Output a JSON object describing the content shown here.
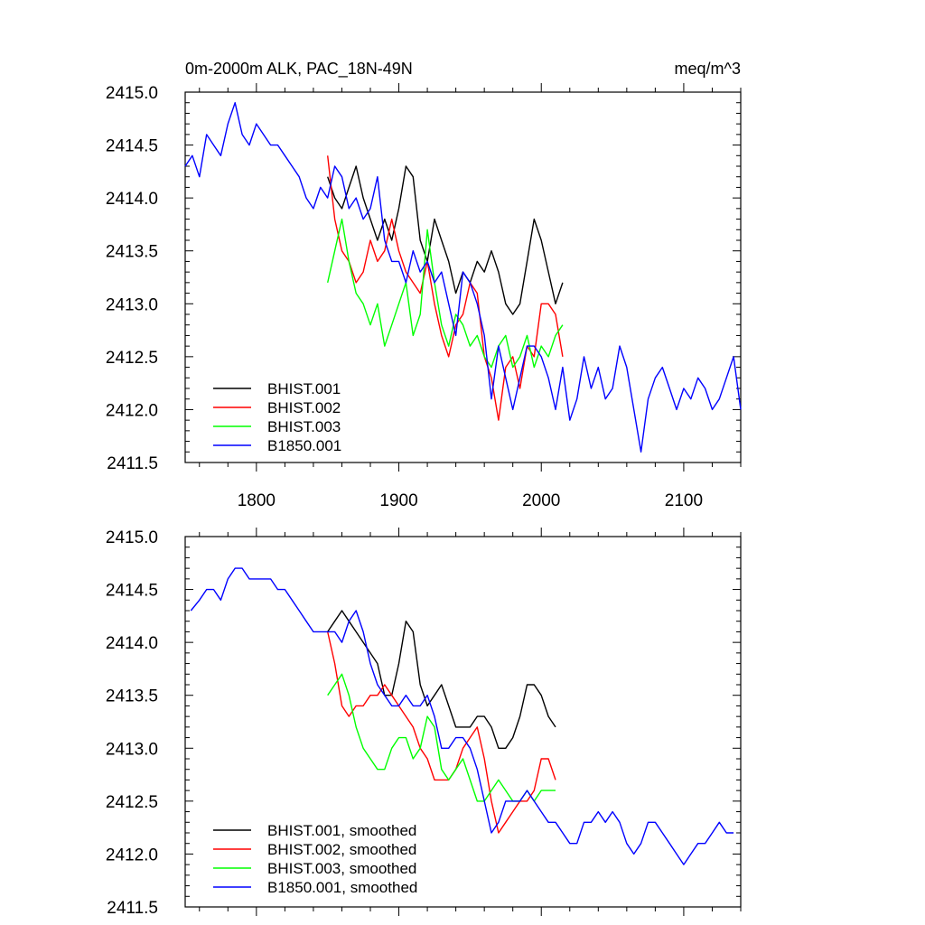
{
  "chart_data": [
    {
      "type": "line",
      "title": "0m-2000m ALK, PAC_18N-49N",
      "units": "meq/m^3",
      "xlim": [
        1750,
        2140
      ],
      "ylim": [
        2411.5,
        2415.0
      ],
      "x_ticks": [
        1800,
        1900,
        2000,
        2100
      ],
      "y_ticks": [
        2411.5,
        2412.0,
        2412.5,
        2413.0,
        2413.5,
        2414.0,
        2414.5,
        2415.0
      ],
      "y_tick_labels": [
        "2411.5",
        "2412.0",
        "2412.5",
        "2413.0",
        "2413.5",
        "2414.0",
        "2414.5",
        "2415.0"
      ],
      "x_tick_labels": [
        "1800",
        "1900",
        "2000",
        "2100"
      ],
      "show_x_tick_labels": true,
      "legend_position": "bottom-left",
      "series": [
        {
          "name": "BHIST.001",
          "color": "#000000",
          "x": [
            1850,
            1855,
            1860,
            1865,
            1870,
            1875,
            1880,
            1885,
            1890,
            1895,
            1900,
            1905,
            1910,
            1915,
            1920,
            1925,
            1930,
            1935,
            1940,
            1945,
            1950,
            1955,
            1960,
            1965,
            1970,
            1975,
            1980,
            1985,
            1990,
            1995,
            2000,
            2005,
            2010,
            2015
          ],
          "y": [
            2414.2,
            2414.0,
            2413.9,
            2414.1,
            2414.3,
            2414.0,
            2413.8,
            2413.6,
            2413.8,
            2413.6,
            2413.9,
            2414.3,
            2414.2,
            2413.6,
            2413.4,
            2413.8,
            2413.6,
            2413.4,
            2413.1,
            2413.3,
            2413.2,
            2413.4,
            2413.3,
            2413.5,
            2413.3,
            2413.0,
            2412.9,
            2413.0,
            2413.4,
            2413.8,
            2413.6,
            2413.3,
            2413.0,
            2413.2
          ]
        },
        {
          "name": "BHIST.002",
          "color": "#ff0000",
          "x": [
            1850,
            1855,
            1860,
            1865,
            1870,
            1875,
            1880,
            1885,
            1890,
            1895,
            1900,
            1905,
            1910,
            1915,
            1920,
            1925,
            1930,
            1935,
            1940,
            1945,
            1950,
            1955,
            1960,
            1965,
            1970,
            1975,
            1980,
            1985,
            1990,
            1995,
            2000,
            2005,
            2010,
            2015
          ],
          "y": [
            2414.4,
            2413.8,
            2413.5,
            2413.4,
            2413.2,
            2413.3,
            2413.6,
            2413.4,
            2413.5,
            2413.8,
            2413.5,
            2413.3,
            2413.2,
            2413.1,
            2413.4,
            2413.0,
            2412.7,
            2412.5,
            2412.8,
            2412.9,
            2413.2,
            2413.1,
            2412.5,
            2412.3,
            2411.9,
            2412.4,
            2412.5,
            2412.2,
            2412.6,
            2412.5,
            2413.0,
            2413.0,
            2412.9,
            2412.5
          ]
        },
        {
          "name": "BHIST.003",
          "color": "#00ff00",
          "x": [
            1850,
            1855,
            1860,
            1865,
            1870,
            1875,
            1880,
            1885,
            1890,
            1895,
            1900,
            1905,
            1910,
            1915,
            1920,
            1925,
            1930,
            1935,
            1940,
            1945,
            1950,
            1955,
            1960,
            1965,
            1970,
            1975,
            1980,
            1985,
            1990,
            1995,
            2000,
            2005,
            2010,
            2015
          ],
          "y": [
            2413.2,
            2413.5,
            2413.8,
            2413.4,
            2413.1,
            2413.0,
            2412.8,
            2413.0,
            2412.6,
            2412.8,
            2413.0,
            2413.2,
            2412.7,
            2412.9,
            2413.7,
            2413.2,
            2412.8,
            2412.6,
            2412.9,
            2412.8,
            2412.6,
            2412.7,
            2412.5,
            2412.4,
            2412.6,
            2412.7,
            2412.4,
            2412.5,
            2412.7,
            2412.4,
            2412.6,
            2412.5,
            2412.7,
            2412.8
          ]
        },
        {
          "name": "B1850.001",
          "color": "#0000ff",
          "x": [
            1750,
            1755,
            1760,
            1765,
            1770,
            1775,
            1780,
            1785,
            1790,
            1795,
            1800,
            1805,
            1810,
            1815,
            1820,
            1825,
            1830,
            1835,
            1840,
            1845,
            1850,
            1855,
            1860,
            1865,
            1870,
            1875,
            1880,
            1885,
            1890,
            1895,
            1900,
            1905,
            1910,
            1915,
            1920,
            1925,
            1930,
            1935,
            1940,
            1945,
            1950,
            1955,
            1960,
            1965,
            1970,
            1975,
            1980,
            1985,
            1990,
            1995,
            2000,
            2005,
            2010,
            2015,
            2020,
            2025,
            2030,
            2035,
            2040,
            2045,
            2050,
            2055,
            2060,
            2065,
            2070,
            2075,
            2080,
            2085,
            2090,
            2095,
            2100,
            2105,
            2110,
            2115,
            2120,
            2125,
            2130,
            2135,
            2140
          ],
          "y": [
            2414.3,
            2414.4,
            2414.2,
            2414.6,
            2414.5,
            2414.4,
            2414.7,
            2414.9,
            2414.6,
            2414.5,
            2414.7,
            2414.6,
            2414.5,
            2414.5,
            2414.4,
            2414.3,
            2414.2,
            2414.0,
            2413.9,
            2414.1,
            2414.0,
            2414.3,
            2414.2,
            2413.9,
            2414.0,
            2413.8,
            2413.9,
            2414.2,
            2413.6,
            2413.4,
            2413.4,
            2413.2,
            2413.5,
            2413.3,
            2413.4,
            2413.2,
            2413.3,
            2413.0,
            2412.7,
            2413.3,
            2413.2,
            2413.0,
            2412.7,
            2412.1,
            2412.6,
            2412.3,
            2412.0,
            2412.3,
            2412.6,
            2412.6,
            2412.5,
            2412.3,
            2412.0,
            2412.4,
            2411.9,
            2412.1,
            2412.5,
            2412.2,
            2412.4,
            2412.1,
            2412.2,
            2412.6,
            2412.4,
            2412.0,
            2411.6,
            2412.1,
            2412.3,
            2412.4,
            2412.2,
            2412.0,
            2412.2,
            2412.1,
            2412.3,
            2412.2,
            2412.0,
            2412.1,
            2412.3,
            2412.5,
            2412.0
          ]
        }
      ]
    },
    {
      "type": "line",
      "xlim": [
        1750,
        2140
      ],
      "ylim": [
        2411.5,
        2415.0
      ],
      "x_ticks": [
        1800,
        1900,
        2000,
        2100
      ],
      "y_ticks": [
        2411.5,
        2412.0,
        2412.5,
        2413.0,
        2413.5,
        2414.0,
        2414.5,
        2415.0
      ],
      "y_tick_labels": [
        "2411.5",
        "2412.0",
        "2412.5",
        "2413.0",
        "2413.5",
        "2414.0",
        "2414.5",
        "2415.0"
      ],
      "show_x_tick_labels": false,
      "legend_position": "bottom-left",
      "series": [
        {
          "name": "BHIST.001, smoothed",
          "color": "#000000",
          "x": [
            1850,
            1855,
            1860,
            1865,
            1870,
            1875,
            1880,
            1885,
            1890,
            1895,
            1900,
            1905,
            1910,
            1915,
            1920,
            1925,
            1930,
            1935,
            1940,
            1945,
            1950,
            1955,
            1960,
            1965,
            1970,
            1975,
            1980,
            1985,
            1990,
            1995,
            2000,
            2005,
            2010
          ],
          "y": [
            2414.1,
            2414.2,
            2414.3,
            2414.2,
            2414.1,
            2414.0,
            2413.9,
            2413.8,
            2413.5,
            2413.5,
            2413.8,
            2414.2,
            2414.1,
            2413.6,
            2413.4,
            2413.5,
            2413.6,
            2413.4,
            2413.2,
            2413.2,
            2413.2,
            2413.3,
            2413.3,
            2413.2,
            2413.0,
            2413.0,
            2413.1,
            2413.3,
            2413.6,
            2413.6,
            2413.5,
            2413.3,
            2413.2
          ]
        },
        {
          "name": "BHIST.002, smoothed",
          "color": "#ff0000",
          "x": [
            1850,
            1855,
            1860,
            1865,
            1870,
            1875,
            1880,
            1885,
            1890,
            1895,
            1900,
            1905,
            1910,
            1915,
            1920,
            1925,
            1930,
            1935,
            1940,
            1945,
            1950,
            1955,
            1960,
            1965,
            1970,
            1975,
            1980,
            1985,
            1990,
            1995,
            2000,
            2005,
            2010
          ],
          "y": [
            2414.1,
            2413.8,
            2413.4,
            2413.3,
            2413.4,
            2413.4,
            2413.5,
            2413.5,
            2413.6,
            2413.5,
            2413.4,
            2413.3,
            2413.2,
            2413.0,
            2412.9,
            2412.7,
            2412.7,
            2412.7,
            2412.8,
            2413.0,
            2413.1,
            2413.2,
            2412.9,
            2412.5,
            2412.2,
            2412.3,
            2412.4,
            2412.5,
            2412.5,
            2412.6,
            2412.9,
            2412.9,
            2412.7
          ]
        },
        {
          "name": "BHIST.003, smoothed",
          "color": "#00ff00",
          "x": [
            1850,
            1855,
            1860,
            1865,
            1870,
            1875,
            1880,
            1885,
            1890,
            1895,
            1900,
            1905,
            1910,
            1915,
            1920,
            1925,
            1930,
            1935,
            1940,
            1945,
            1950,
            1955,
            1960,
            1965,
            1970,
            1975,
            1980,
            1985,
            1990,
            1995,
            2000,
            2005,
            2010
          ],
          "y": [
            2413.5,
            2413.6,
            2413.7,
            2413.5,
            2413.2,
            2413.0,
            2412.9,
            2412.8,
            2412.8,
            2413.0,
            2413.1,
            2413.1,
            2412.9,
            2413.0,
            2413.3,
            2413.2,
            2412.8,
            2412.7,
            2412.8,
            2412.9,
            2412.7,
            2412.5,
            2412.5,
            2412.6,
            2412.7,
            2412.6,
            2412.5,
            2412.5,
            2412.6,
            2412.5,
            2412.6,
            2412.6,
            2412.6
          ]
        },
        {
          "name": "B1850.001, smoothed",
          "color": "#0000ff",
          "x": [
            1754,
            1760,
            1765,
            1770,
            1775,
            1780,
            1785,
            1790,
            1795,
            1800,
            1805,
            1810,
            1815,
            1820,
            1825,
            1830,
            1835,
            1840,
            1845,
            1850,
            1855,
            1860,
            1865,
            1870,
            1875,
            1880,
            1885,
            1890,
            1895,
            1900,
            1905,
            1910,
            1915,
            1920,
            1925,
            1930,
            1935,
            1940,
            1945,
            1950,
            1955,
            1960,
            1965,
            1970,
            1975,
            1980,
            1985,
            1990,
            1995,
            2000,
            2005,
            2010,
            2015,
            2020,
            2025,
            2030,
            2035,
            2040,
            2045,
            2050,
            2055,
            2060,
            2065,
            2070,
            2075,
            2080,
            2085,
            2090,
            2095,
            2100,
            2105,
            2110,
            2115,
            2120,
            2125,
            2130,
            2135
          ],
          "y": [
            2414.3,
            2414.4,
            2414.5,
            2414.5,
            2414.4,
            2414.6,
            2414.7,
            2414.7,
            2414.6,
            2414.6,
            2414.6,
            2414.6,
            2414.5,
            2414.5,
            2414.4,
            2414.3,
            2414.2,
            2414.1,
            2414.1,
            2414.1,
            2414.1,
            2414.0,
            2414.2,
            2414.3,
            2414.1,
            2413.8,
            2413.6,
            2413.5,
            2413.4,
            2413.4,
            2413.5,
            2413.4,
            2413.4,
            2413.5,
            2413.3,
            2413.0,
            2413.0,
            2413.1,
            2413.1,
            2413.0,
            2412.8,
            2412.5,
            2412.2,
            2412.3,
            2412.5,
            2412.5,
            2412.5,
            2412.6,
            2412.5,
            2412.4,
            2412.3,
            2412.3,
            2412.2,
            2412.1,
            2412.1,
            2412.3,
            2412.3,
            2412.4,
            2412.3,
            2412.4,
            2412.3,
            2412.1,
            2412.0,
            2412.1,
            2412.3,
            2412.3,
            2412.2,
            2412.1,
            2412.0,
            2411.9,
            2412.0,
            2412.1,
            2412.1,
            2412.2,
            2412.3,
            2412.2,
            2412.2
          ]
        }
      ]
    }
  ]
}
